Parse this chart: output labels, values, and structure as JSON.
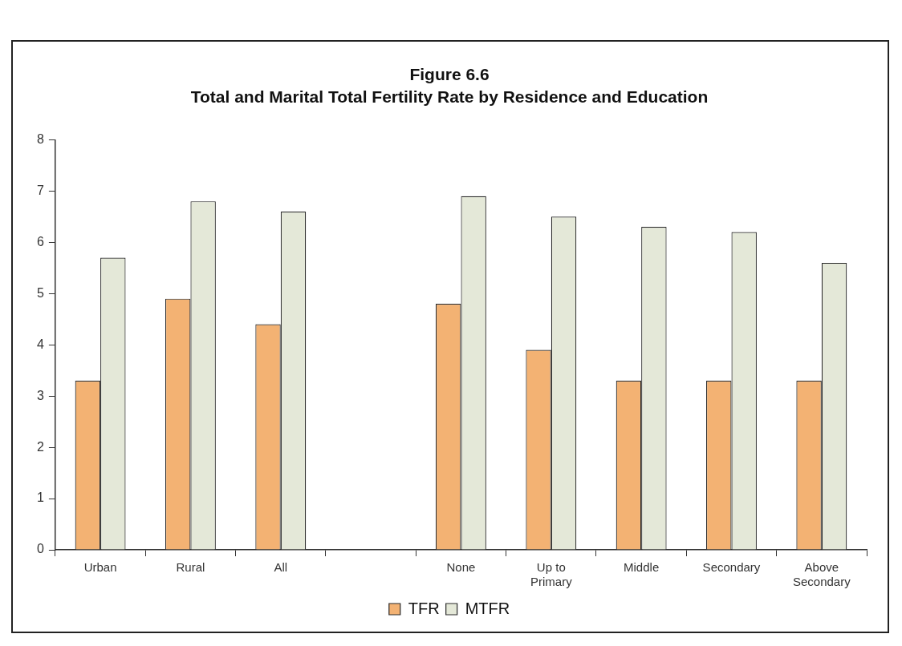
{
  "chart_data": {
    "type": "bar",
    "title": "Figure 6.6",
    "subtitle": "Total and Marital Total Fertility Rate by Residence and Education",
    "categories": [
      "Urban",
      "Rural",
      "All",
      null,
      "None",
      "Up to Primary",
      "Middle",
      "Secondary",
      "Above Secondary"
    ],
    "series": [
      {
        "name": "TFR",
        "color": "#f3b273",
        "values": [
          3.3,
          4.9,
          4.4,
          null,
          4.8,
          3.9,
          3.3,
          3.3,
          3.3
        ]
      },
      {
        "name": "MTFR",
        "color": "#e4e8d8",
        "values": [
          5.7,
          6.8,
          6.6,
          null,
          6.9,
          6.5,
          6.3,
          6.2,
          5.6
        ]
      }
    ],
    "ylim": [
      0,
      8
    ],
    "yticks": [
      0,
      1,
      2,
      3,
      4,
      5,
      6,
      7,
      8
    ],
    "grid": false,
    "legend": "bottom"
  }
}
